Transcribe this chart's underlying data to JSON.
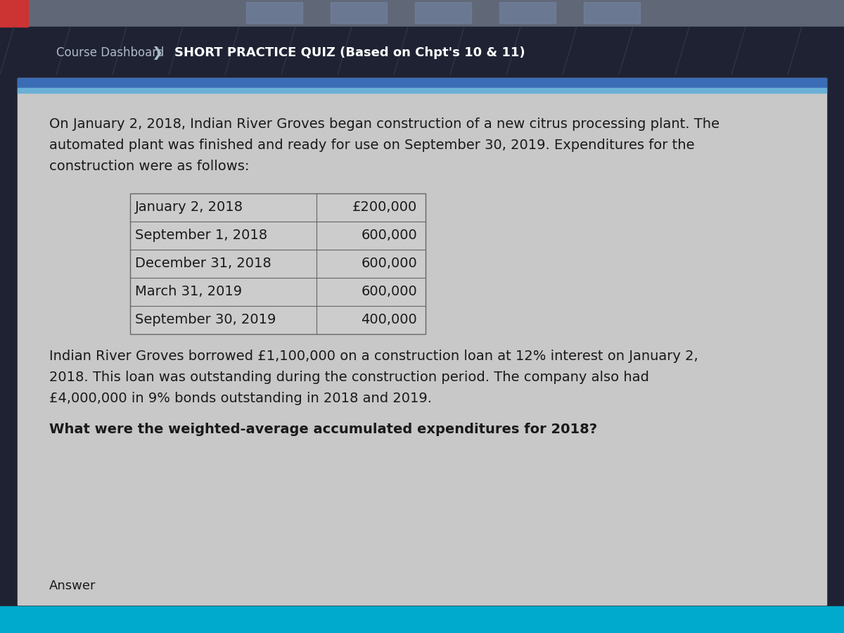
{
  "header_bg": "#1e2233",
  "header_text_color": "#b0b8c8",
  "breadcrumb_left": "Course Dashboard",
  "breadcrumb_right": "SHORT PRACTICE QUIZ (Based on Chpt's 10 & 11)",
  "blue_stripe_color": "#3a6db5",
  "light_blue_stripe": "#6aafd6",
  "content_bg": "#c8c8c8",
  "body_text_color": "#1a1a1a",
  "paragraph1_lines": [
    "On January 2, 2018, Indian River Groves began construction of a new citrus processing plant. The",
    "automated plant was finished and ready for use on September 30, 2019. Expenditures for the",
    "construction were as follows:"
  ],
  "table_dates": [
    "January 2, 2018",
    "September 1, 2018",
    "December 31, 2018",
    "March 31, 2019",
    "September 30, 2019"
  ],
  "table_amounts": [
    "£200,000",
    "600,000",
    "600,000",
    "600,000",
    "400,000"
  ],
  "paragraph2_lines": [
    "Indian River Groves borrowed £1,100,000 on a construction loan at 12% interest on January 2,",
    "2018. This loan was outstanding during the construction period. The company also had",
    "£4,000,000 in 9% bonds outstanding in 2018 and 2019."
  ],
  "question": "What were the weighted-average accumulated expenditures for 2018?",
  "answer_label": "Answer",
  "table_border_color": "#666666",
  "font_size_body": 14,
  "font_size_header": 12,
  "photo_strip_color": "#8899aa",
  "bottom_bar_color": "#00aacc",
  "arrow_color": "#aabbcc"
}
